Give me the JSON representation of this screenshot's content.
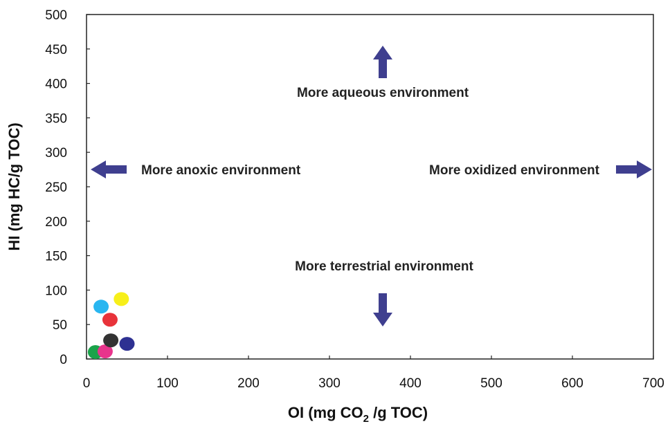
{
  "chart_data": {
    "type": "scatter",
    "title": "",
    "xlabel_main": "OI (mg CO",
    "xlabel_sub": "2",
    "xlabel_rest": " /g TOC)",
    "ylabel": "HI (mg HC/g TOC)",
    "xlim": [
      0,
      700
    ],
    "ylim": [
      0,
      500
    ],
    "xticks": [
      0,
      100,
      200,
      300,
      400,
      500,
      600,
      700
    ],
    "yticks": [
      0,
      50,
      100,
      150,
      200,
      250,
      300,
      350,
      400,
      450,
      500
    ],
    "grid": false,
    "legend": "none",
    "points": [
      {
        "x": 11,
        "y": 10,
        "color": "#1aa34a"
      },
      {
        "x": 23,
        "y": 11,
        "color": "#e8348c"
      },
      {
        "x": 30,
        "y": 27,
        "color": "#333333"
      },
      {
        "x": 50,
        "y": 22,
        "color": "#2e3192"
      },
      {
        "x": 29,
        "y": 57,
        "color": "#e8333a"
      },
      {
        "x": 18,
        "y": 76,
        "color": "#29b6f0"
      },
      {
        "x": 43,
        "y": 87,
        "color": "#f7ef1a"
      }
    ],
    "annotations": [
      {
        "text": "More aqueous environment",
        "direction": "up"
      },
      {
        "text": "More terrestrial environment",
        "direction": "down"
      },
      {
        "text": "More anoxic environment",
        "direction": "left"
      },
      {
        "text": "More oxidized environment",
        "direction": "right"
      }
    ],
    "arrow_color": "#3f3f8f"
  }
}
